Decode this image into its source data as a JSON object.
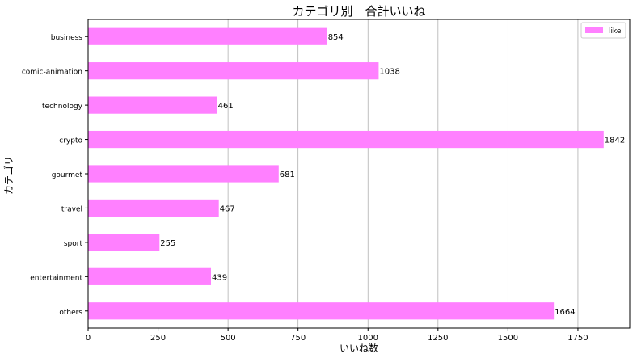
{
  "chart_data": {
    "type": "bar",
    "orientation": "horizontal",
    "title": "カテゴリ別　合計いいね",
    "xlabel": "いいね数",
    "ylabel": "カテゴリ",
    "categories": [
      "business",
      "comic-animation",
      "technology",
      "crypto",
      "gourmet",
      "travel",
      "sport",
      "entertainment",
      "others"
    ],
    "series": [
      {
        "name": "like",
        "values": [
          854,
          1038,
          461,
          1842,
          681,
          467,
          255,
          439,
          1664
        ]
      }
    ],
    "xlim": [
      0,
      1935
    ],
    "xticks": [
      0,
      250,
      500,
      750,
      1000,
      1250,
      1500,
      1750
    ],
    "grid": "x",
    "legend": "top-right",
    "data_labels": true,
    "bar_color": "#ff80ff"
  }
}
